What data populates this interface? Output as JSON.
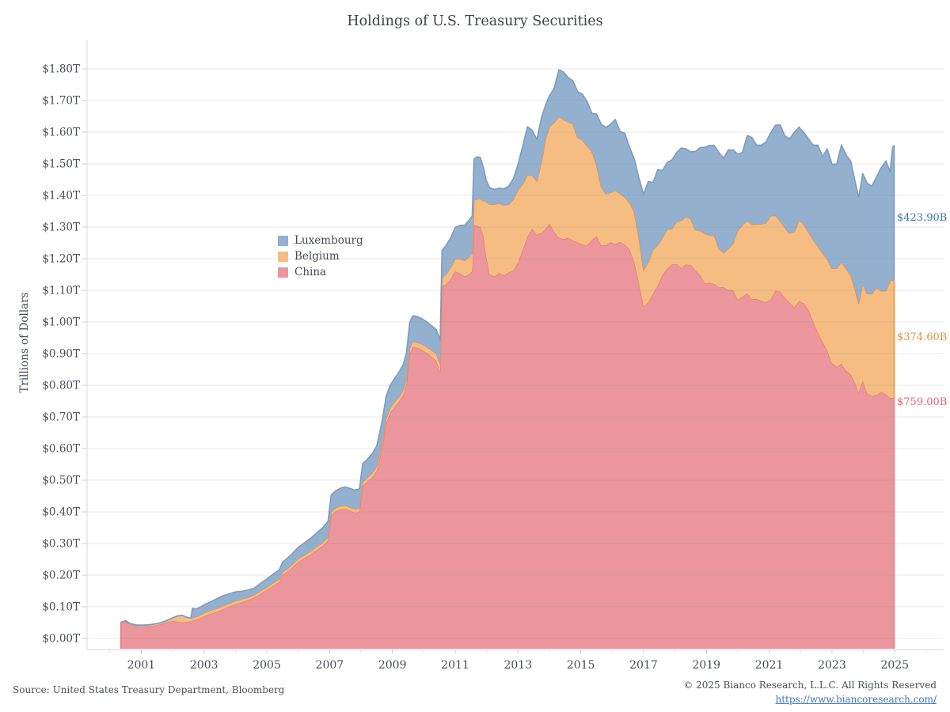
{
  "title": "Holdings of U.S. Treasury Securities",
  "y_axis": {
    "label": "Trillions of Dollars",
    "tick_values": [
      0,
      0.1,
      0.2,
      0.3,
      0.4,
      0.5,
      0.6,
      0.7,
      0.8,
      0.9,
      1.0,
      1.1,
      1.2,
      1.3,
      1.4,
      1.5,
      1.6,
      1.7,
      1.8
    ],
    "tick_labels": [
      "$0.00T",
      "$0.10T",
      "$0.20T",
      "$0.30T",
      "$0.40T",
      "$0.50T",
      "$0.60T",
      "$0.70T",
      "$0.80T",
      "$0.90T",
      "$1.00T",
      "$1.10T",
      "$1.20T",
      "$1.30T",
      "$1.40T",
      "$1.50T",
      "$1.60T",
      "$1.70T",
      "$1.80T"
    ]
  },
  "x_axis": {
    "tick_values": [
      2001,
      2003,
      2005,
      2007,
      2009,
      2011,
      2013,
      2015,
      2017,
      2019,
      2021,
      2023,
      2025
    ],
    "tick_labels": [
      "2001",
      "2003",
      "2005",
      "2007",
      "2009",
      "2011",
      "2013",
      "2015",
      "2017",
      "2019",
      "2021",
      "2023",
      "2025"
    ]
  },
  "legend": {
    "items": [
      {
        "name": "Luxembourg",
        "color": "#93b0cf"
      },
      {
        "name": "Belgium",
        "color": "#f6bd82"
      },
      {
        "name": "China",
        "color": "#eb969c"
      }
    ]
  },
  "annotations": [
    {
      "text": "$423.90B",
      "series": "Luxembourg",
      "color": "#3f76b3",
      "y_value_billions": 1325
    },
    {
      "text": "$374.60B",
      "series": "Belgium",
      "color": "#e8913c",
      "y_value_billions": 948
    },
    {
      "text": "$759.00B",
      "series": "China",
      "color": "#e4646e",
      "y_value_billions": 743
    }
  ],
  "footer": {
    "source": "Source: United States Treasury Department, Bloomberg",
    "copyright": "© 2025 Bianco Research, L.L.C. All Rights Reserved",
    "link": "https://www.biancoresearch.com/"
  },
  "chart_data": {
    "type": "area",
    "stacked": true,
    "title": "Holdings of U.S. Treasury Securities",
    "xlabel": "",
    "ylabel": "Trillions of Dollars",
    "unit": "billions of USD",
    "ylim": [
      0,
      1.85
    ],
    "xlim": [
      2000,
      2026
    ],
    "grid": true,
    "legend_position": "left-center",
    "stack_order_bottom_to_top": [
      "China",
      "Belgium",
      "Luxembourg"
    ],
    "x": [
      2000.35,
      2000.5,
      2000.65,
      2000.85,
      2001.05,
      2001.25,
      2001.45,
      2001.65,
      2001.85,
      2002.0,
      2002.15,
      2002.3,
      2002.45,
      2002.58,
      2002.63,
      2002.75,
      2002.9,
      2003.05,
      2003.2,
      2003.4,
      2003.6,
      2003.8,
      2004.0,
      2004.2,
      2004.4,
      2004.6,
      2004.8,
      2005.0,
      2005.2,
      2005.4,
      2005.5,
      2005.65,
      2005.8,
      2006.0,
      2006.2,
      2006.4,
      2006.6,
      2006.8,
      2006.95,
      2007.05,
      2007.2,
      2007.35,
      2007.5,
      2007.65,
      2007.8,
      2007.95,
      2008.05,
      2008.2,
      2008.35,
      2008.5,
      2008.6,
      2008.7,
      2008.8,
      2008.92,
      2009.05,
      2009.2,
      2009.35,
      2009.45,
      2009.55,
      2009.65,
      2009.8,
      2009.95,
      2010.1,
      2010.25,
      2010.4,
      2010.52,
      2010.58,
      2010.7,
      2010.85,
      2011.0,
      2011.15,
      2011.3,
      2011.45,
      2011.54,
      2011.6,
      2011.7,
      2011.8,
      2011.9,
      2011.98,
      2012.1,
      2012.25,
      2012.4,
      2012.55,
      2012.7,
      2012.85,
      2013.0,
      2013.15,
      2013.3,
      2013.45,
      2013.6,
      2013.75,
      2013.88,
      2014.0,
      2014.15,
      2014.3,
      2014.45,
      2014.6,
      2014.75,
      2014.9,
      2015.05,
      2015.2,
      2015.35,
      2015.5,
      2015.65,
      2015.8,
      2015.95,
      2016.1,
      2016.25,
      2016.4,
      2016.55,
      2016.7,
      2016.85,
      2017.0,
      2017.15,
      2017.3,
      2017.45,
      2017.6,
      2017.75,
      2017.9,
      2018.05,
      2018.2,
      2018.35,
      2018.5,
      2018.65,
      2018.8,
      2018.95,
      2019.1,
      2019.25,
      2019.4,
      2019.55,
      2019.7,
      2019.85,
      2020.0,
      2020.15,
      2020.3,
      2020.45,
      2020.6,
      2020.75,
      2020.9,
      2021.05,
      2021.2,
      2021.35,
      2021.5,
      2021.65,
      2021.8,
      2021.95,
      2022.1,
      2022.25,
      2022.4,
      2022.55,
      2022.7,
      2022.85,
      2023.0,
      2023.15,
      2023.3,
      2023.45,
      2023.6,
      2023.75,
      2023.85,
      2023.98,
      2024.12,
      2024.27,
      2024.42,
      2024.57,
      2024.72,
      2024.85,
      2024.93,
      2024.98
    ],
    "series": [
      {
        "name": "China",
        "fill_color": "#eb969c",
        "line_color": "#e97e85",
        "final_value_label": "$759.00B",
        "values": [
          48,
          53,
          44,
          39,
          38,
          39,
          41,
          46,
          52,
          55,
          53,
          51,
          52,
          54,
          56,
          60,
          65,
          72,
          77,
          84,
          92,
          100,
          108,
          114,
          121,
          129,
          141,
          153,
          166,
          179,
          201,
          211,
          223,
          242,
          254,
          266,
          280,
          294,
          310,
          390,
          402,
          408,
          410,
          404,
          397,
          400,
          482,
          495,
          508,
          530,
          572,
          620,
          680,
          712,
          730,
          747,
          770,
          805,
          900,
          922,
          918,
          912,
          902,
          890,
          877,
          843,
          1112,
          1118,
          1135,
          1160,
          1154,
          1144,
          1152,
          1160,
          1307,
          1304,
          1300,
          1273,
          1210,
          1150,
          1144,
          1155,
          1147,
          1157,
          1162,
          1188,
          1228,
          1270,
          1295,
          1275,
          1282,
          1293,
          1312,
          1285,
          1266,
          1262,
          1266,
          1258,
          1252,
          1245,
          1242,
          1258,
          1272,
          1242,
          1243,
          1252,
          1246,
          1253,
          1244,
          1230,
          1190,
          1125,
          1049,
          1062,
          1090,
          1115,
          1148,
          1168,
          1182,
          1183,
          1170,
          1182,
          1180,
          1163,
          1148,
          1122,
          1124,
          1120,
          1110,
          1110,
          1101,
          1101,
          1070,
          1080,
          1090,
          1072,
          1073,
          1067,
          1062,
          1072,
          1099,
          1095,
          1077,
          1061,
          1046,
          1066,
          1059,
          1038,
          1002,
          967,
          938,
          909,
          869,
          858,
          868,
          846,
          834,
          805,
          777,
          815,
          774,
          766,
          770,
          779,
          771,
          759,
          760,
          759
        ]
      },
      {
        "name": "Belgium",
        "fill_color": "#f6bd82",
        "line_color": "#f0913f",
        "final_value_label": "$374.60B",
        "values": [
          3,
          3,
          3,
          3,
          4,
          4,
          5,
          5,
          6,
          10,
          18,
          22,
          15,
          10,
          9,
          9,
          10,
          11,
          11,
          11,
          11,
          11,
          11,
          10,
          9,
          9,
          9,
          9,
          9,
          9,
          9,
          9,
          10,
          10,
          10,
          10,
          11,
          11,
          11,
          11,
          11,
          11,
          11,
          11,
          12,
          12,
          13,
          13,
          14,
          14,
          14,
          15,
          15,
          15,
          16,
          16,
          16,
          17,
          17,
          17,
          17,
          18,
          19,
          21,
          23,
          25,
          28,
          32,
          36,
          40,
          45,
          50,
          55,
          57,
          78,
          84,
          90,
          110,
          170,
          222,
          228,
          220,
          222,
          215,
          225,
          230,
          208,
          195,
          168,
          170,
          225,
          288,
          305,
          345,
          383,
          378,
          366,
          368,
          330,
          330,
          315,
          282,
          225,
          185,
          162,
          157,
          170,
          153,
          151,
          148,
          158,
          143,
          114,
          128,
          139,
          128,
          119,
          125,
          112,
          134,
          150,
          151,
          147,
          128,
          141,
          158,
          150,
          153,
          122,
          108,
          131,
          147,
          220,
          226,
          231,
          237,
          236,
          243,
          251,
          264,
          238,
          224,
          221,
          219,
          239,
          256,
          250,
          246,
          258,
          273,
          280,
          290,
          300,
          312,
          322,
          323,
          314,
          293,
          281,
          305,
          316,
          323,
          339,
          319,
          328,
          371,
          372,
          374.6
        ]
      },
      {
        "name": "Luxembourg",
        "fill_color": "#93b0cf",
        "line_color": "#7b9cc3",
        "final_value_label": "$423.90B",
        "values": [
          0,
          0,
          0,
          0,
          0,
          0,
          0,
          0,
          0,
          0,
          0,
          0,
          0,
          0,
          30,
          24,
          25,
          26,
          27,
          30,
          32,
          30,
          28,
          25,
          23,
          21,
          24,
          26,
          28,
          29,
          31,
          33,
          34,
          36,
          38,
          41,
          44,
          47,
          50,
          52,
          54,
          56,
          58,
          59,
          60,
          60,
          57,
          58,
          61,
          64,
          66,
          68,
          70,
          71,
          73,
          77,
          81,
          82,
          82,
          81,
          82,
          80,
          79,
          77,
          76,
          74,
          86,
          91,
          94,
          99,
          106,
          112,
          116,
          118,
          130,
          134,
          130,
          105,
          70,
          52,
          47,
          48,
          52,
          57,
          65,
          80,
          120,
          152,
          143,
          132,
          140,
          105,
          98,
          108,
          148,
          150,
          140,
          136,
          146,
          145,
          140,
          120,
          160,
          198,
          210,
          216,
          224,
          196,
          202,
          175,
          168,
          188,
          241,
          254,
          212,
          238,
          212,
          211,
          218,
          218,
          230,
          214,
          211,
          248,
          262,
          272,
          284,
          285,
          303,
          300,
          312,
          296,
          240,
          230,
          268,
          274,
          250,
          249,
          256,
          262,
          285,
          304,
          290,
          299,
          314,
          294,
          290,
          295,
          299,
          319,
          305,
          348,
          330,
          329,
          369,
          359,
          360,
          340,
          337,
          349,
          349,
          340,
          350,
          390,
          410,
          345,
          420,
          423.9
        ]
      }
    ]
  }
}
